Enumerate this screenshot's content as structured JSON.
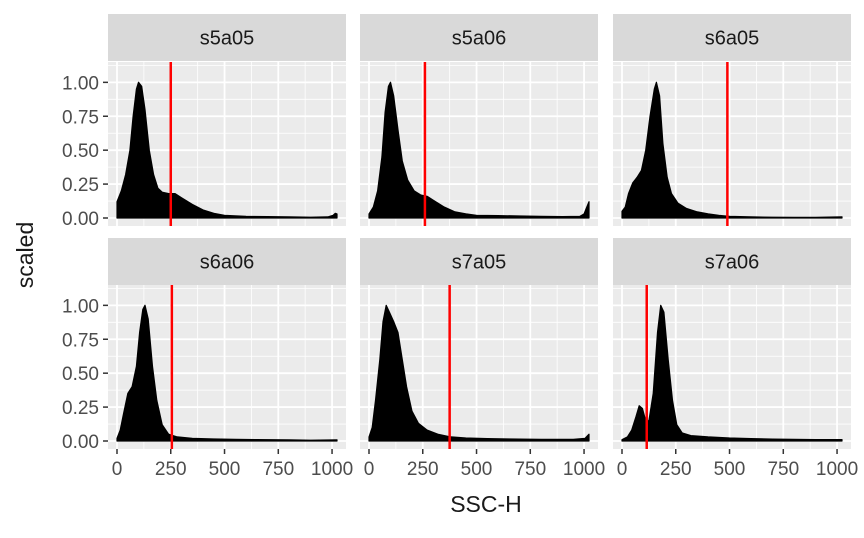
{
  "chart_data": {
    "type": "area",
    "xlabel": "SSC-H",
    "ylabel": "scaled",
    "xlim": [
      0,
      1023
    ],
    "ylim": [
      0,
      1.15
    ],
    "x_ticks": [
      0,
      250,
      500,
      750,
      1000
    ],
    "y_ticks": [
      0.0,
      0.25,
      0.5,
      0.75,
      1.0
    ],
    "x_tick_labels": [
      "0",
      "250",
      "500",
      "750",
      "1000"
    ],
    "y_tick_labels": [
      "0.00",
      "0.25",
      "0.50",
      "0.75",
      "1.00"
    ],
    "grid": true,
    "fill_color": "#000000",
    "line_color": "#ff0000",
    "panel_bg": "#ebebeb",
    "strip_bg": "#d9d9d9",
    "panels": [
      {
        "name": "s5a05",
        "vline": 250,
        "points": [
          [
            0,
            0.12
          ],
          [
            20,
            0.2
          ],
          [
            40,
            0.32
          ],
          [
            60,
            0.5
          ],
          [
            75,
            0.75
          ],
          [
            90,
            0.95
          ],
          [
            100,
            1.0
          ],
          [
            115,
            0.97
          ],
          [
            130,
            0.8
          ],
          [
            150,
            0.5
          ],
          [
            170,
            0.32
          ],
          [
            190,
            0.22
          ],
          [
            210,
            0.19
          ],
          [
            240,
            0.18
          ],
          [
            270,
            0.18
          ],
          [
            300,
            0.15
          ],
          [
            350,
            0.1
          ],
          [
            400,
            0.06
          ],
          [
            450,
            0.035
          ],
          [
            500,
            0.02
          ],
          [
            600,
            0.012
          ],
          [
            700,
            0.01
          ],
          [
            800,
            0.008
          ],
          [
            900,
            0.006
          ],
          [
            980,
            0.008
          ],
          [
            1005,
            0.02
          ],
          [
            1015,
            0.035
          ],
          [
            1023,
            0.03
          ]
        ]
      },
      {
        "name": "s5a06",
        "vline": 260,
        "points": [
          [
            0,
            0.03
          ],
          [
            20,
            0.08
          ],
          [
            40,
            0.2
          ],
          [
            60,
            0.45
          ],
          [
            75,
            0.78
          ],
          [
            90,
            0.97
          ],
          [
            100,
            1.0
          ],
          [
            115,
            0.9
          ],
          [
            135,
            0.65
          ],
          [
            155,
            0.42
          ],
          [
            180,
            0.28
          ],
          [
            210,
            0.2
          ],
          [
            240,
            0.17
          ],
          [
            270,
            0.16
          ],
          [
            300,
            0.13
          ],
          [
            350,
            0.08
          ],
          [
            400,
            0.045
          ],
          [
            450,
            0.03
          ],
          [
            500,
            0.02
          ],
          [
            600,
            0.018
          ],
          [
            700,
            0.015
          ],
          [
            800,
            0.012
          ],
          [
            900,
            0.01
          ],
          [
            980,
            0.012
          ],
          [
            1000,
            0.03
          ],
          [
            1010,
            0.07
          ],
          [
            1023,
            0.12
          ]
        ]
      },
      {
        "name": "s6a05",
        "vline": 490,
        "points": [
          [
            0,
            0.05
          ],
          [
            15,
            0.08
          ],
          [
            30,
            0.18
          ],
          [
            50,
            0.26
          ],
          [
            70,
            0.3
          ],
          [
            90,
            0.35
          ],
          [
            110,
            0.5
          ],
          [
            130,
            0.75
          ],
          [
            150,
            0.95
          ],
          [
            160,
            1.0
          ],
          [
            175,
            0.9
          ],
          [
            190,
            0.55
          ],
          [
            210,
            0.3
          ],
          [
            230,
            0.18
          ],
          [
            260,
            0.11
          ],
          [
            300,
            0.07
          ],
          [
            350,
            0.045
          ],
          [
            400,
            0.03
          ],
          [
            450,
            0.02
          ],
          [
            500,
            0.012
          ],
          [
            600,
            0.008
          ],
          [
            700,
            0.006
          ],
          [
            800,
            0.005
          ],
          [
            900,
            0.005
          ],
          [
            1023,
            0.008
          ]
        ]
      },
      {
        "name": "s6a06",
        "vline": 255,
        "points": [
          [
            0,
            0.02
          ],
          [
            15,
            0.08
          ],
          [
            30,
            0.2
          ],
          [
            50,
            0.35
          ],
          [
            70,
            0.4
          ],
          [
            90,
            0.55
          ],
          [
            105,
            0.8
          ],
          [
            120,
            0.97
          ],
          [
            130,
            1.0
          ],
          [
            145,
            0.9
          ],
          [
            165,
            0.55
          ],
          [
            185,
            0.3
          ],
          [
            210,
            0.12
          ],
          [
            240,
            0.05
          ],
          [
            280,
            0.03
          ],
          [
            350,
            0.02
          ],
          [
            450,
            0.015
          ],
          [
            550,
            0.012
          ],
          [
            650,
            0.01
          ],
          [
            800,
            0.008
          ],
          [
            900,
            0.006
          ],
          [
            1023,
            0.008
          ]
        ]
      },
      {
        "name": "s7a05",
        "vline": 375,
        "points": [
          [
            0,
            0.03
          ],
          [
            15,
            0.1
          ],
          [
            30,
            0.3
          ],
          [
            50,
            0.6
          ],
          [
            65,
            0.88
          ],
          [
            80,
            1.0
          ],
          [
            95,
            0.95
          ],
          [
            115,
            0.88
          ],
          [
            135,
            0.8
          ],
          [
            155,
            0.6
          ],
          [
            175,
            0.4
          ],
          [
            200,
            0.22
          ],
          [
            230,
            0.13
          ],
          [
            270,
            0.08
          ],
          [
            320,
            0.05
          ],
          [
            380,
            0.03
          ],
          [
            450,
            0.022
          ],
          [
            550,
            0.018
          ],
          [
            650,
            0.015
          ],
          [
            800,
            0.012
          ],
          [
            950,
            0.012
          ],
          [
            1005,
            0.02
          ],
          [
            1023,
            0.05
          ]
        ]
      },
      {
        "name": "s7a06",
        "vline": 115,
        "points": [
          [
            0,
            0.01
          ],
          [
            25,
            0.03
          ],
          [
            45,
            0.08
          ],
          [
            65,
            0.18
          ],
          [
            80,
            0.26
          ],
          [
            95,
            0.24
          ],
          [
            110,
            0.15
          ],
          [
            125,
            0.15
          ],
          [
            145,
            0.35
          ],
          [
            165,
            0.8
          ],
          [
            180,
            1.0
          ],
          [
            195,
            0.95
          ],
          [
            215,
            0.6
          ],
          [
            235,
            0.3
          ],
          [
            255,
            0.12
          ],
          [
            280,
            0.06
          ],
          [
            320,
            0.04
          ],
          [
            400,
            0.03
          ],
          [
            500,
            0.022
          ],
          [
            600,
            0.018
          ],
          [
            700,
            0.014
          ],
          [
            800,
            0.012
          ],
          [
            900,
            0.01
          ],
          [
            1023,
            0.01
          ]
        ]
      }
    ]
  }
}
